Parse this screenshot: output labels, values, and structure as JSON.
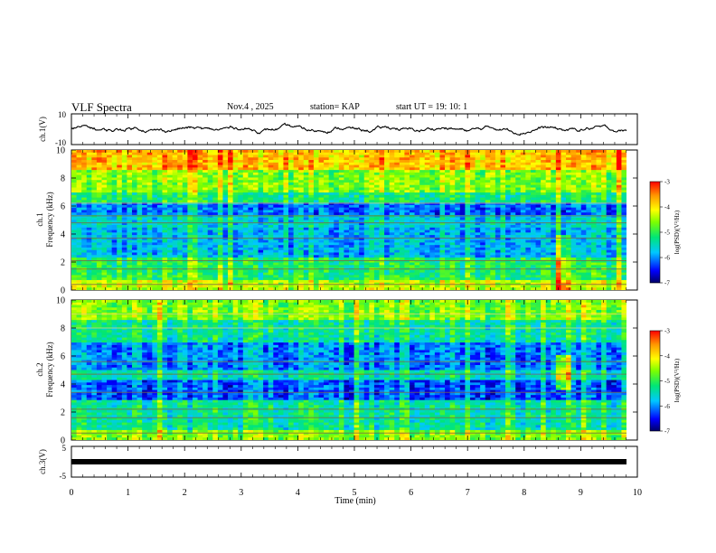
{
  "header": {
    "title": "VLF Spectra",
    "date": "Nov.4 , 2025",
    "station": "station= KAP",
    "start": "start UT = 19: 10: 1"
  },
  "chart_data": [
    {
      "type": "line",
      "id": "ch1-waveform",
      "ylabel": "ch.1(V)",
      "ylim": [
        -10,
        10
      ],
      "yticks": [
        "10",
        "-10"
      ],
      "xlim": [
        0,
        10
      ],
      "series": [
        {
          "name": "ch.1",
          "note": "noisy waveform roughly between -3 and 3 V",
          "range": [
            -4,
            4
          ]
        }
      ]
    },
    {
      "type": "heatmap",
      "id": "ch1-spectrogram",
      "ylabel_line1": "ch.1",
      "ylabel_line2": "Frequency (kHz)",
      "ylim": [
        0,
        10
      ],
      "yticks": [
        "0",
        "2",
        "4",
        "6",
        "8",
        "10"
      ],
      "xlim": [
        0,
        10
      ],
      "colorbar": {
        "label": "log(PSD)(V²/Hz)",
        "range": [
          -7,
          -3
        ],
        "ticks": [
          "-3",
          "-4",
          "-5",
          "-6",
          "-7"
        ]
      }
    },
    {
      "type": "heatmap",
      "id": "ch2-spectrogram",
      "ylabel_line1": "ch.2",
      "ylabel_line2": "Frequency (kHz)",
      "ylim": [
        0,
        10
      ],
      "yticks": [
        "0",
        "2",
        "4",
        "6",
        "8",
        "10"
      ],
      "xlim": [
        0,
        10
      ],
      "colorbar": {
        "label": "log(PSD)(V²/Hz)",
        "range": [
          -7,
          -3
        ],
        "ticks": [
          "-3",
          "-4",
          "-5",
          "-6",
          "-7"
        ]
      }
    },
    {
      "type": "line",
      "id": "ch3-waveform",
      "ylabel": "ch.3(V)",
      "ylim": [
        -5,
        5
      ],
      "yticks": [
        "5",
        "-5"
      ],
      "xlim": [
        0,
        10
      ],
      "series": [
        {
          "name": "ch.3",
          "note": "solid band near -1 V",
          "value": -1
        }
      ]
    }
  ],
  "xaxis": {
    "label": "Time (min)",
    "range": [
      0,
      10
    ],
    "ticks": [
      "0",
      "1",
      "2",
      "3",
      "4",
      "5",
      "6",
      "7",
      "8",
      "9",
      "10"
    ]
  }
}
